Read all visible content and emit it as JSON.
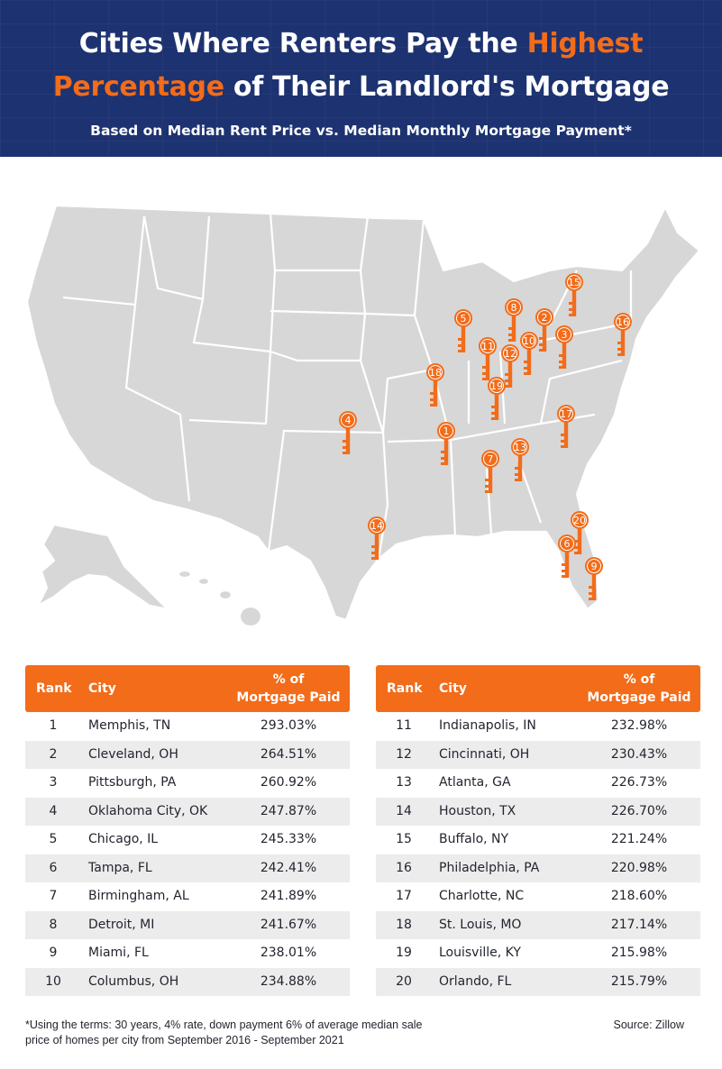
{
  "title": {
    "line1_white": "Cities Where Renters Pay the ",
    "line1_accent": "Highest",
    "line2_accent": "Percentage",
    "line2_white": " of Their Landlord's Mortgage"
  },
  "subtitle": "Based on Median Rent Price vs. Median Monthly Mortgage Payment*",
  "colors": {
    "header_bg": "#1d3270",
    "accent": "#f26c1a",
    "map_fill": "#d7d7d7",
    "row_alt": "#ececec"
  },
  "map": {
    "marker_icon": "key-icon",
    "markers": [
      {
        "rank": "1",
        "city": "Memphis, TN"
      },
      {
        "rank": "2",
        "city": "Cleveland, OH"
      },
      {
        "rank": "3",
        "city": "Pittsburgh, PA"
      },
      {
        "rank": "4",
        "city": "Oklahoma City, OK"
      },
      {
        "rank": "5",
        "city": "Chicago, IL"
      },
      {
        "rank": "6",
        "city": "Tampa, FL"
      },
      {
        "rank": "7",
        "city": "Birmingham, AL"
      },
      {
        "rank": "8",
        "city": "Detroit, MI"
      },
      {
        "rank": "9",
        "city": "Miami, FL"
      },
      {
        "rank": "10",
        "city": "Columbus, OH"
      },
      {
        "rank": "11",
        "city": "Indianapolis, IN"
      },
      {
        "rank": "12",
        "city": "Cincinnati, OH"
      },
      {
        "rank": "13",
        "city": "Atlanta, GA"
      },
      {
        "rank": "14",
        "city": "Houston, TX"
      },
      {
        "rank": "15",
        "city": "Buffalo, NY"
      },
      {
        "rank": "16",
        "city": "Philadelphia, PA"
      },
      {
        "rank": "17",
        "city": "Charlotte, NC"
      },
      {
        "rank": "18",
        "city": "St. Louis, MO"
      },
      {
        "rank": "19",
        "city": "Louisville, KY"
      },
      {
        "rank": "20",
        "city": "Orlando, FL"
      }
    ]
  },
  "table": {
    "headers": {
      "rank": "Rank",
      "city": "City",
      "pct_line1": "% of",
      "pct_line2": "Mortgage Paid"
    },
    "left": [
      {
        "rank": "1",
        "city": "Memphis, TN",
        "pct": "293.03%"
      },
      {
        "rank": "2",
        "city": "Cleveland, OH",
        "pct": "264.51%"
      },
      {
        "rank": "3",
        "city": "Pittsburgh, PA",
        "pct": "260.92%"
      },
      {
        "rank": "4",
        "city": "Oklahoma City, OK",
        "pct": "247.87%"
      },
      {
        "rank": "5",
        "city": "Chicago, IL",
        "pct": "245.33%"
      },
      {
        "rank": "6",
        "city": "Tampa, FL",
        "pct": "242.41%"
      },
      {
        "rank": "7",
        "city": "Birmingham, AL",
        "pct": "241.89%"
      },
      {
        "rank": "8",
        "city": "Detroit, MI",
        "pct": "241.67%"
      },
      {
        "rank": "9",
        "city": "Miami, FL",
        "pct": "238.01%"
      },
      {
        "rank": "10",
        "city": "Columbus, OH",
        "pct": "234.88%"
      }
    ],
    "right": [
      {
        "rank": "11",
        "city": "Indianapolis, IN",
        "pct": "232.98%"
      },
      {
        "rank": "12",
        "city": "Cincinnati, OH",
        "pct": "230.43%"
      },
      {
        "rank": "13",
        "city": "Atlanta, GA",
        "pct": "226.73%"
      },
      {
        "rank": "14",
        "city": "Houston, TX",
        "pct": "226.70%"
      },
      {
        "rank": "15",
        "city": "Buffalo, NY",
        "pct": "221.24%"
      },
      {
        "rank": "16",
        "city": "Philadelphia, PA",
        "pct": "220.98%"
      },
      {
        "rank": "17",
        "city": "Charlotte, NC",
        "pct": "218.60%"
      },
      {
        "rank": "18",
        "city": "St. Louis, MO",
        "pct": "217.14%"
      },
      {
        "rank": "19",
        "city": "Louisville, KY",
        "pct": "215.98%"
      },
      {
        "rank": "20",
        "city": "Orlando, FL",
        "pct": "215.79%"
      }
    ]
  },
  "footnote": "*Using the terms: 30 years, 4% rate, down payment 6%  of average median sale price of homes per city from September 2016 - September 2021",
  "source": "Source: Zillow"
}
